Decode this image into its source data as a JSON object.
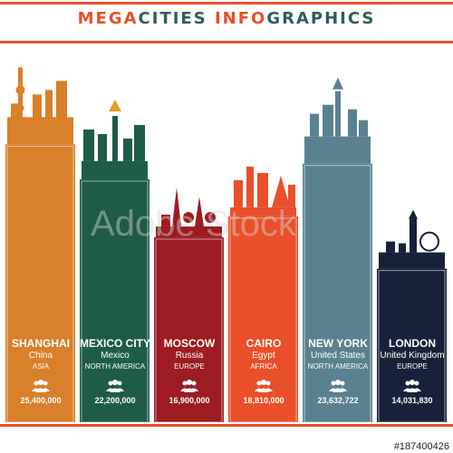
{
  "title": {
    "part1": "MEGA",
    "part2": "CITIES ",
    "part3": "INFO",
    "part4": "GRAPHICS",
    "color_primary": "#e94f2a",
    "color_secondary": "#2d5d5c"
  },
  "watermark": "Adobe Stock",
  "stock_id": "#187400426",
  "chart_data": {
    "type": "bar",
    "title": "MEGACITIES INFOGRAPHICS",
    "categories": [
      "SHANGHAI",
      "MEXICO CITY",
      "MOSCOW",
      "CAIRO",
      "NEW YORK",
      "LONDON"
    ],
    "countries": [
      "China",
      "Mexico",
      "Russia",
      "Egypt",
      "United States",
      "United Kingdom"
    ],
    "continents": [
      "ASIA",
      "NORTH AMERICA",
      "EUROPE",
      "AFRICA",
      "NORTH AMERICA",
      "EUROPE"
    ],
    "population_labels": [
      "25,400,000",
      "22,200,000",
      "16,900,000",
      "18,810,000",
      "23,632,722",
      "14,031,830"
    ],
    "values": [
      25400000,
      22200000,
      16900000,
      18810000,
      23632722,
      14031830
    ],
    "colors": [
      "#d9802a",
      "#1e5c46",
      "#9c1c22",
      "#e94f2a",
      "#5a8190",
      "#17223a"
    ],
    "ylim": [
      0,
      27000000
    ],
    "grid": false,
    "legend": "none"
  }
}
